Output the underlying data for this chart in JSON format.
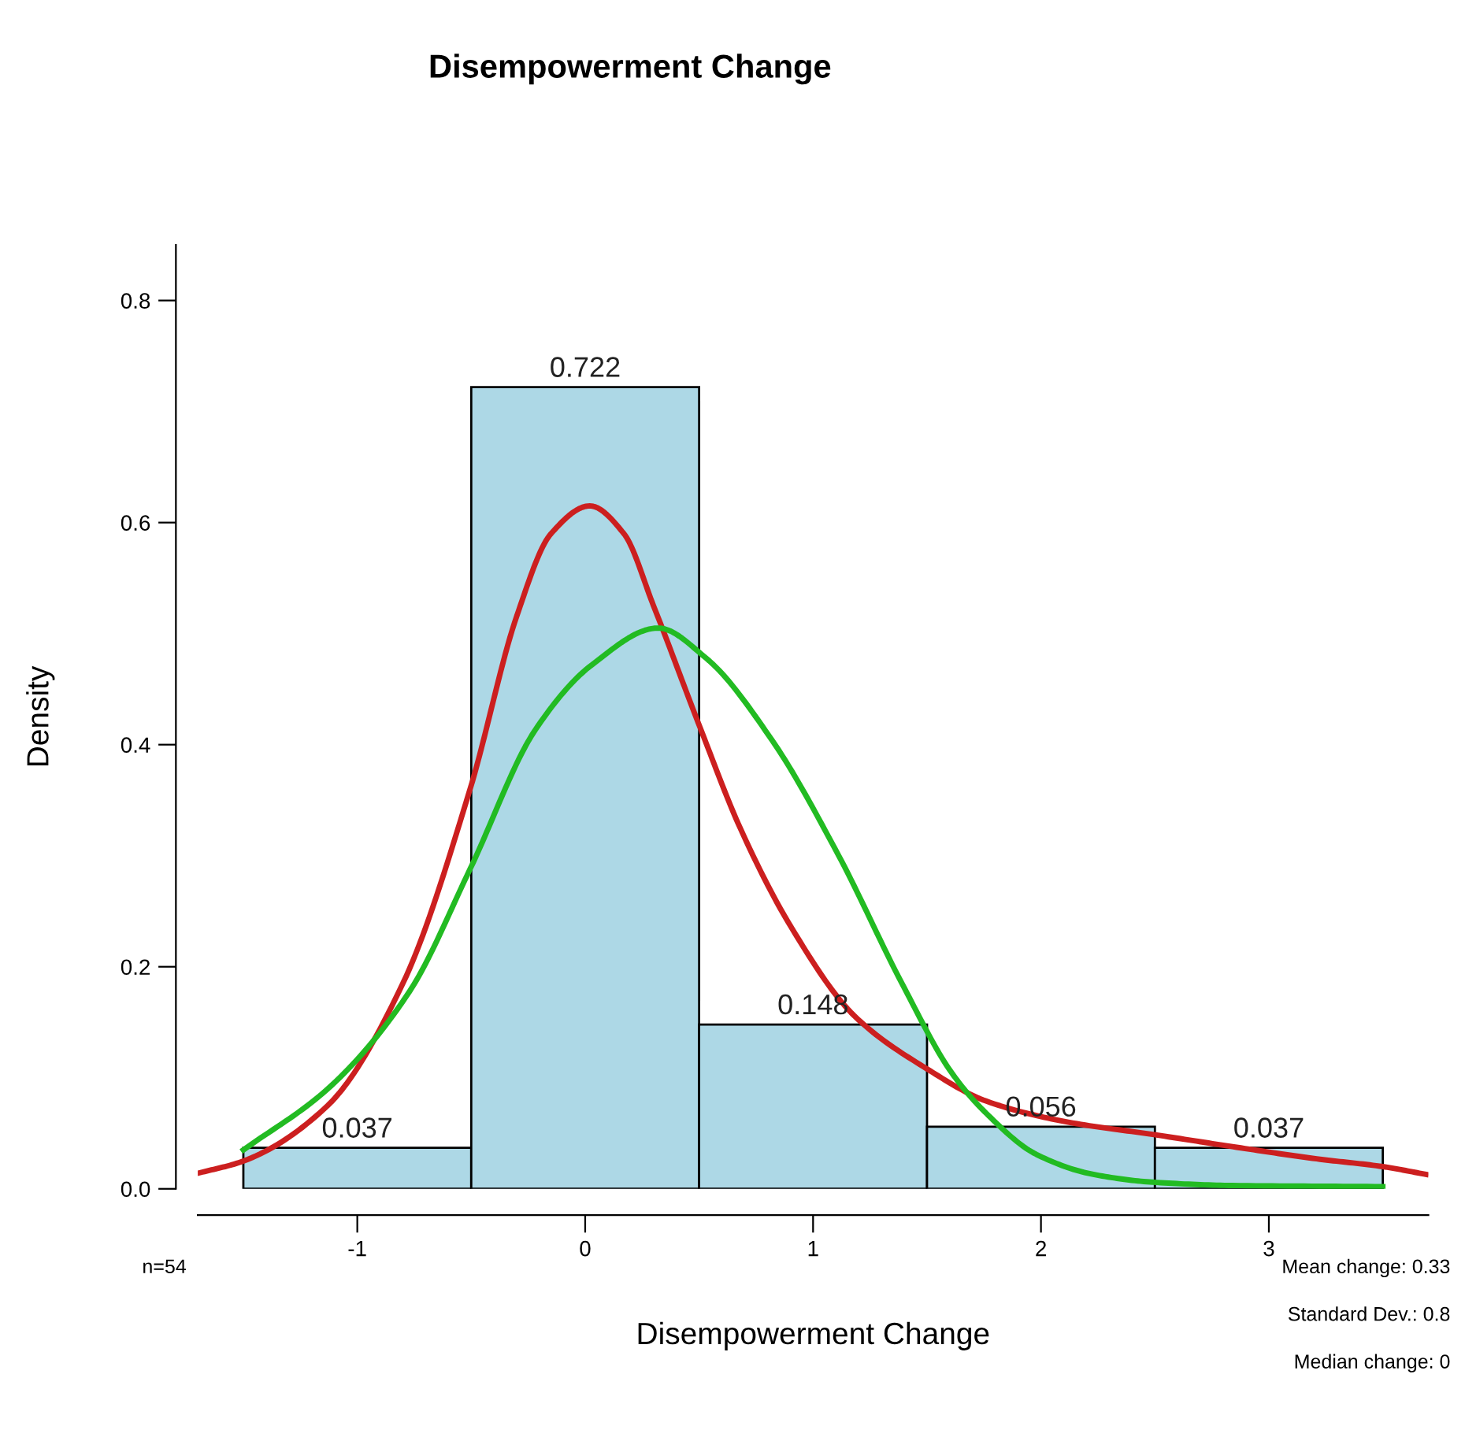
{
  "chart_data": {
    "type": "histogram",
    "title": "Disempowerment Change",
    "xlabel": "Disempowerment Change",
    "ylabel": "Density",
    "bins": [
      -1.5,
      -0.5,
      0.5,
      1.5,
      2.5,
      3.5
    ],
    "values": [
      0.037,
      0.722,
      0.148,
      0.056,
      0.037
    ],
    "color": "#add8e6",
    "value_labels": [
      "0.037",
      "0.722",
      "0.148",
      "0.056",
      "0.037"
    ],
    "series": [
      {
        "type": "line",
        "color": "#cc1f1f",
        "x": [
          -1.7,
          -1.5,
          -1.13,
          -0.8,
          -0.505,
          -0.3,
          -0.15,
          0.02,
          0.17,
          0.3,
          0.505,
          0.68,
          0.9,
          1.18,
          1.5,
          1.76,
          2.12,
          2.49,
          2.84,
          3.21,
          3.5,
          3.69
        ],
        "values": [
          0.014,
          0.025,
          0.075,
          0.185,
          0.36,
          0.516,
          0.59,
          0.615,
          0.59,
          0.525,
          0.415,
          0.325,
          0.237,
          0.156,
          0.108,
          0.079,
          0.06,
          0.049,
          0.038,
          0.027,
          0.02,
          0.013
        ]
      },
      {
        "type": "line",
        "color": "#22bb22",
        "x": [
          -1.5,
          -1.13,
          -0.77,
          -0.505,
          -0.22,
          0.03,
          0.32,
          0.53,
          0.82,
          1.11,
          1.39,
          1.61,
          1.76,
          1.98,
          2.23,
          2.49,
          2.84,
          3.5
        ],
        "values": [
          0.035,
          0.09,
          0.178,
          0.288,
          0.413,
          0.472,
          0.505,
          0.478,
          0.404,
          0.301,
          0.185,
          0.104,
          0.068,
          0.031,
          0.013,
          0.006,
          0.003,
          0.002
        ]
      }
    ],
    "xlim": [
      -1.7,
      3.7
    ],
    "ylim": [
      0,
      0.85
    ],
    "xticks": [
      -1,
      0,
      1,
      2,
      3
    ],
    "yticks": [
      {
        "value": 0,
        "label": "0.0"
      },
      {
        "value": 0.2,
        "label": "0.2"
      },
      {
        "value": 0.4,
        "label": "0.4"
      },
      {
        "value": 0.6,
        "label": "0.6"
      },
      {
        "value": 0.8,
        "label": "0.8"
      }
    ],
    "grid": false,
    "legend": false,
    "annotations": [
      "n=54",
      "Mean change: 0.33",
      "Standard Dev.: 0.8",
      "Median change: 0"
    ]
  }
}
